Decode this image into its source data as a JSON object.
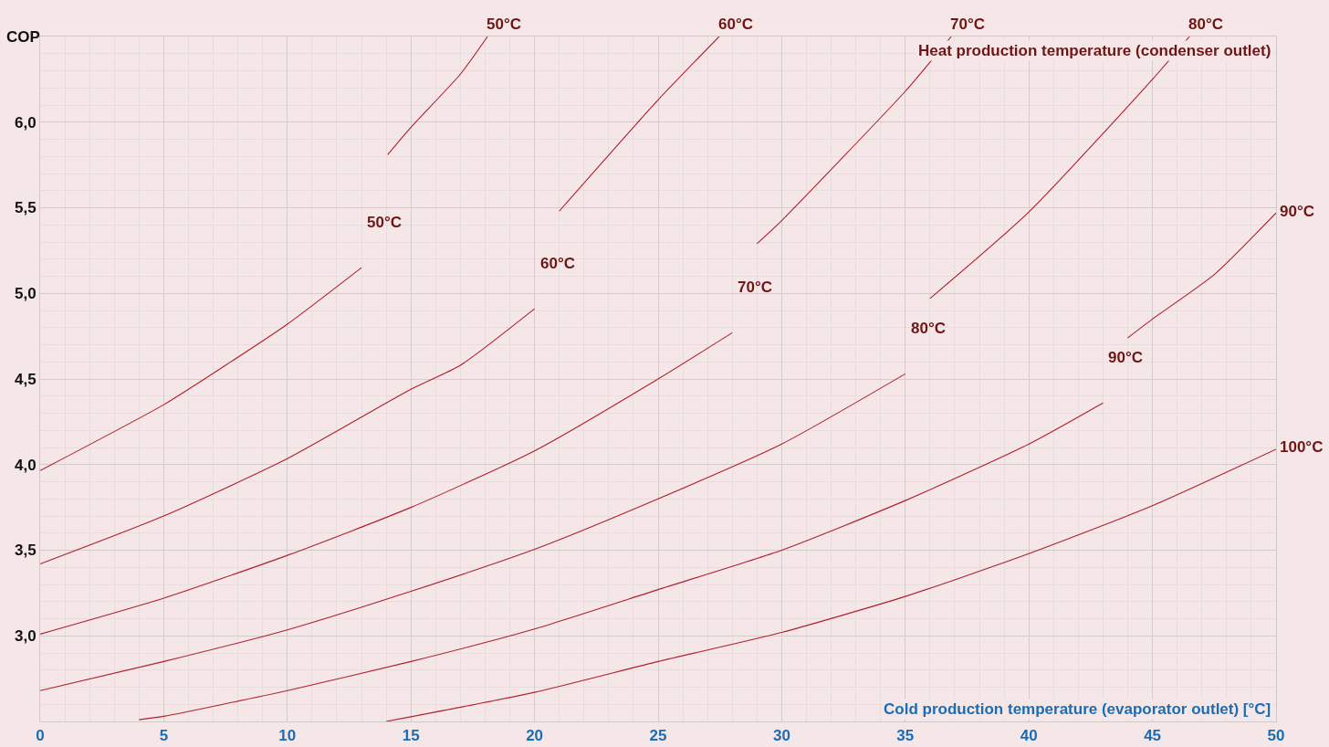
{
  "chart_data": {
    "type": "line",
    "xlabel": "Cold production temperature (evaporator outlet) [°C]",
    "ylabel": "COP",
    "annotations": [
      "Heat production temperature (condenser outlet)"
    ],
    "xlim": [
      0,
      50
    ],
    "ylim": [
      2.5,
      6.5
    ],
    "xticks": [
      0,
      5,
      10,
      15,
      20,
      25,
      30,
      35,
      40,
      45,
      50
    ],
    "yticks": [
      {
        "value": 3,
        "label": "3,0"
      },
      {
        "value": 3.5,
        "label": "3,5"
      },
      {
        "value": 4,
        "label": "4,0"
      },
      {
        "value": 4.5,
        "label": "4,5"
      },
      {
        "value": 5,
        "label": "5,0"
      },
      {
        "value": 5.5,
        "label": "5,5"
      },
      {
        "value": 6,
        "label": "6,0"
      }
    ],
    "grid": true,
    "legend": false,
    "marker": "none",
    "line_style": "solid",
    "series": [
      {
        "name": "50°C",
        "color": "#b0202a",
        "x": [
          0,
          5,
          7.5,
          10,
          13
        ],
        "values": [
          3.965,
          4.35,
          4.58,
          4.82,
          5.15
        ]
      },
      {
        "name": "60°C",
        "color": "#b0202a",
        "x": [
          0,
          5,
          10,
          15,
          17,
          20
        ],
        "values": [
          3.42,
          3.7,
          4.035,
          4.44,
          4.58,
          4.91
        ]
      },
      {
        "name": "70°C",
        "color": "#b0202a",
        "x": [
          0,
          5,
          10,
          15,
          20,
          25,
          28
        ],
        "values": [
          3.01,
          3.22,
          3.47,
          3.75,
          4.08,
          4.5,
          4.77
        ]
      },
      {
        "name": "80°C",
        "color": "#b0202a",
        "x": [
          0,
          5,
          10,
          15,
          20,
          25,
          30,
          35
        ],
        "values": [
          2.68,
          2.85,
          3.035,
          3.26,
          3.505,
          3.8,
          4.12,
          4.53
        ]
      },
      {
        "name": "90°C",
        "color": "#b0202a",
        "x": [
          4,
          5,
          10,
          15,
          20,
          25,
          30,
          35,
          40,
          43
        ],
        "values": [
          2.51,
          2.53,
          2.68,
          2.85,
          3.04,
          3.27,
          3.5,
          3.79,
          4.12,
          4.36
        ]
      },
      {
        "name": "100°C",
        "color": "#b0202a",
        "x": [
          14,
          20,
          25,
          30,
          35,
          40,
          45,
          50
        ],
        "values": [
          2.5,
          2.67,
          2.85,
          3.02,
          3.23,
          3.48,
          3.76,
          4.09
        ]
      },
      {
        "name": "50°C",
        "color": "#b0202a",
        "x": [
          14.06,
          15,
          17,
          18.1
        ],
        "values": [
          5.81,
          5.97,
          6.28,
          6.5
        ]
      },
      {
        "name": "60°C",
        "color": "#b0202a",
        "x": [
          21,
          25,
          27.47
        ],
        "values": [
          5.48,
          6.13,
          6.5
        ]
      },
      {
        "name": "70°C",
        "color": "#b0202a",
        "x": [
          29,
          30,
          35,
          36,
          36.86
        ],
        "values": [
          5.29,
          5.425,
          6.18,
          6.35,
          6.5
        ]
      },
      {
        "name": "80°C",
        "color": "#b0202a",
        "x": [
          36,
          40,
          45,
          46.5
        ],
        "values": [
          4.97,
          5.475,
          6.25,
          6.5
        ]
      },
      {
        "name": "90°C",
        "color": "#b0202a",
        "x": [
          44,
          45,
          47.5,
          50
        ],
        "values": [
          4.74,
          4.85,
          5.11,
          5.47
        ]
      }
    ]
  }
}
